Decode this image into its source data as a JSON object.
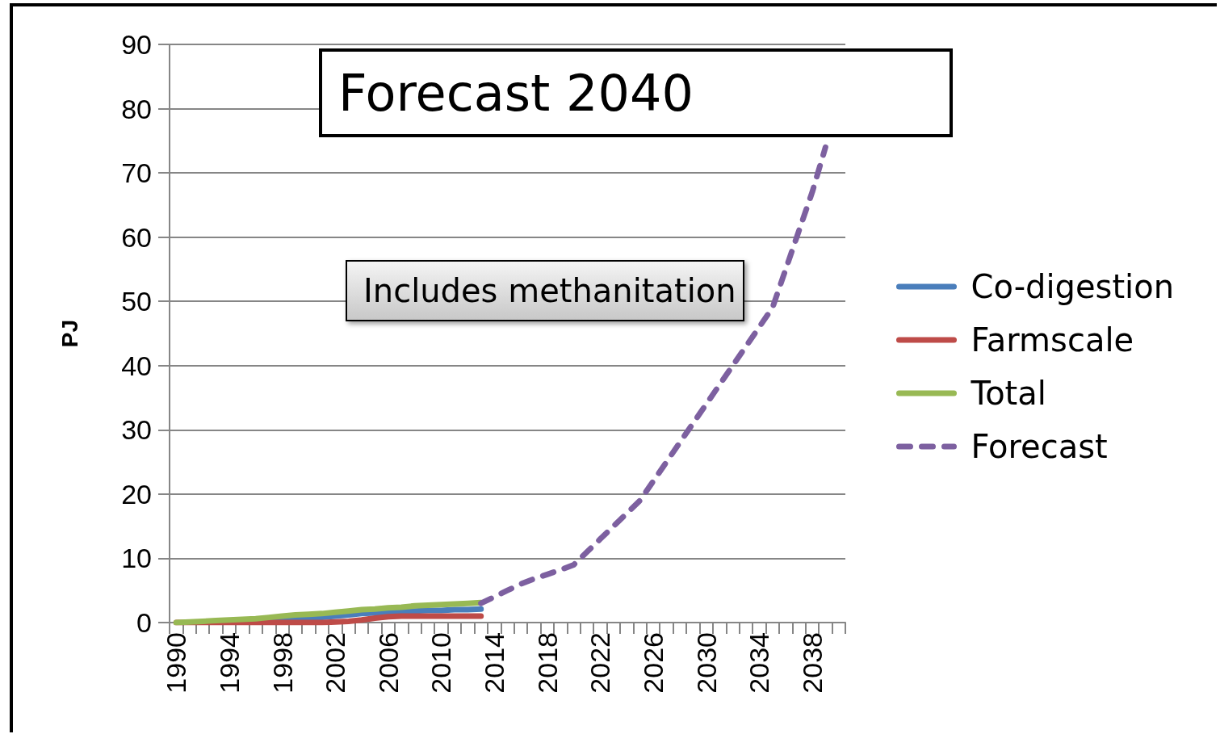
{
  "chart_data": {
    "type": "line",
    "ylabel": "PJ",
    "annotations": [
      "Forecast 2040",
      "Includes methanitation"
    ],
    "categories": [
      "1990",
      null,
      null,
      null,
      "1994",
      null,
      null,
      null,
      "1998",
      null,
      null,
      null,
      "2002",
      null,
      null,
      null,
      "2006",
      null,
      null,
      null,
      "2010",
      null,
      null,
      null,
      "2014",
      null,
      null,
      null,
      "2018",
      null,
      null,
      null,
      "2022",
      null,
      null,
      null,
      "2026",
      null,
      null,
      null,
      "2030",
      null,
      null,
      null,
      "2034",
      null,
      null,
      null,
      "2038",
      null,
      null
    ],
    "series": [
      {
        "name": "Co-digestion",
        "color": "#4a7ebb",
        "values": [
          null,
          null,
          null,
          null,
          null,
          null,
          null,
          0.3,
          0.5,
          0.6,
          0.7,
          0.8,
          1.0,
          1.2,
          1.4,
          1.5,
          1.6,
          1.7,
          1.8,
          1.9,
          1.9,
          2.0,
          2.0,
          2.1,
          null,
          null,
          null,
          null,
          null,
          null,
          null,
          null,
          null,
          null,
          null,
          null,
          null,
          null,
          null,
          null,
          null,
          null,
          null,
          null,
          null,
          null,
          null,
          null,
          null,
          null,
          null
        ]
      },
      {
        "name": "Farmscale",
        "color": "#be4b48",
        "values": [
          0,
          0,
          0,
          0,
          0,
          0,
          0,
          0,
          0,
          0,
          0,
          0,
          0.1,
          0.2,
          0.4,
          0.7,
          0.9,
          1.0,
          1.0,
          1.0,
          1.0,
          1.0,
          1.0,
          1.0,
          null,
          null,
          null,
          null,
          null,
          null,
          null,
          null,
          null,
          null,
          null,
          null,
          null,
          null,
          null,
          null,
          null,
          null,
          null,
          null,
          null,
          null,
          null,
          null,
          null,
          null,
          null
        ]
      },
      {
        "name": "Total",
        "color": "#98b954",
        "values": [
          0,
          0.1,
          0.2,
          0.3,
          0.4,
          0.5,
          0.6,
          0.8,
          1.0,
          1.2,
          1.3,
          1.4,
          1.6,
          1.8,
          2.0,
          2.1,
          2.3,
          2.4,
          2.6,
          2.7,
          2.8,
          2.9,
          3.0,
          3.1,
          null,
          null,
          null,
          null,
          null,
          null,
          null,
          null,
          null,
          null,
          null,
          null,
          null,
          null,
          null,
          null,
          null,
          null,
          null,
          null,
          null,
          null,
          null,
          null,
          null,
          null,
          null
        ]
      },
      {
        "name": "Forecast",
        "color": "#7d60a0",
        "line_style": "dashed",
        "values": [
          null,
          null,
          null,
          null,
          null,
          null,
          null,
          null,
          null,
          null,
          null,
          null,
          null,
          null,
          null,
          null,
          null,
          null,
          null,
          null,
          null,
          null,
          null,
          3,
          4,
          5,
          6,
          6.8,
          7.5,
          8.2,
          9,
          11,
          13,
          15,
          17,
          19,
          22,
          25,
          28,
          31,
          34,
          37,
          40,
          43,
          46,
          49,
          55,
          61,
          67,
          74,
          null
        ]
      }
    ],
    "ylim": [
      0,
      90
    ],
    "yticks": [
      0,
      10,
      20,
      30,
      40,
      50,
      60,
      70,
      80,
      90
    ],
    "grid": "y",
    "legend": "right",
    "marker": "none",
    "line_style": "solid"
  }
}
